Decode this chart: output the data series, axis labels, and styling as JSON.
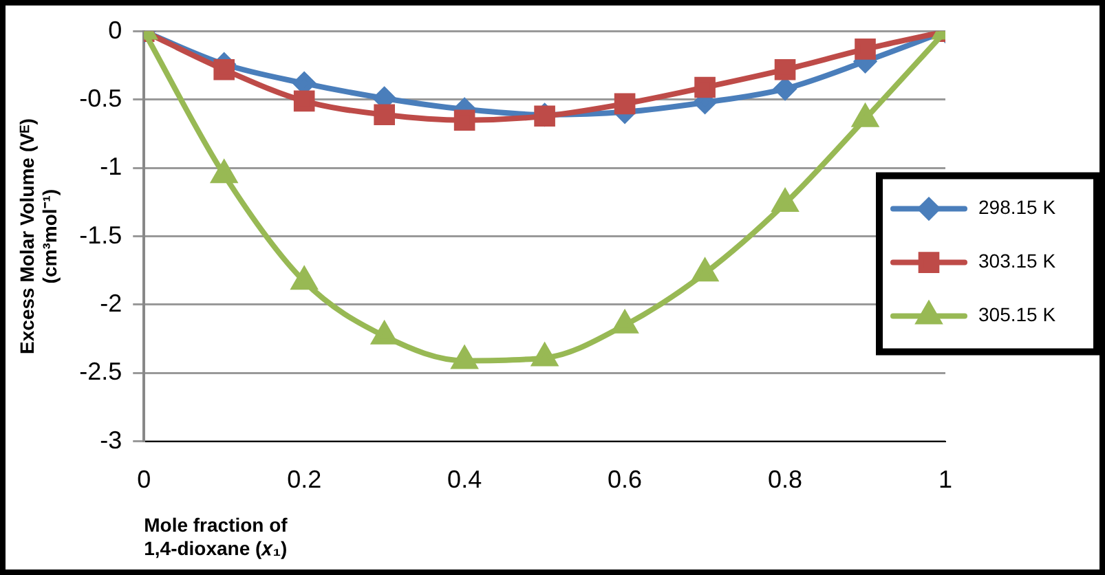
{
  "chart_data": {
    "type": "line",
    "xlabel": "Mole fraction of\n1,4-dioxane (𝑥₁)",
    "ylabel": "Excess Molar Volume (Vᴱ)\n(cm³mol⁻¹)",
    "x": [
      0,
      0.1,
      0.2,
      0.3,
      0.4,
      0.5,
      0.6,
      0.7,
      0.8,
      0.9,
      1
    ],
    "xlim": [
      0,
      1
    ],
    "xticks": [
      0,
      0.2,
      0.4,
      0.6,
      0.8,
      1
    ],
    "ylim": [
      -3,
      0
    ],
    "yticks": [
      -3,
      -2.5,
      -2,
      -1.5,
      -1,
      -0.5,
      0
    ],
    "grid": "y",
    "legend": "right",
    "series": [
      {
        "name": "298.15 K",
        "color": "#4a7ebb",
        "marker": "diamond",
        "values": [
          0,
          -0.24,
          -0.38,
          -0.49,
          -0.57,
          -0.61,
          -0.59,
          -0.52,
          -0.42,
          -0.22,
          0
        ]
      },
      {
        "name": "303.15 K",
        "color": "#be4b48",
        "marker": "square",
        "values": [
          0,
          -0.28,
          -0.51,
          -0.61,
          -0.65,
          -0.62,
          -0.53,
          -0.41,
          -0.28,
          -0.13,
          0
        ]
      },
      {
        "name": "305.15 K",
        "color": "#98b954",
        "marker": "triangle",
        "values": [
          0,
          -1.05,
          -1.83,
          -2.23,
          -2.41,
          -2.39,
          -2.15,
          -1.77,
          -1.26,
          -0.64,
          0
        ]
      }
    ]
  }
}
